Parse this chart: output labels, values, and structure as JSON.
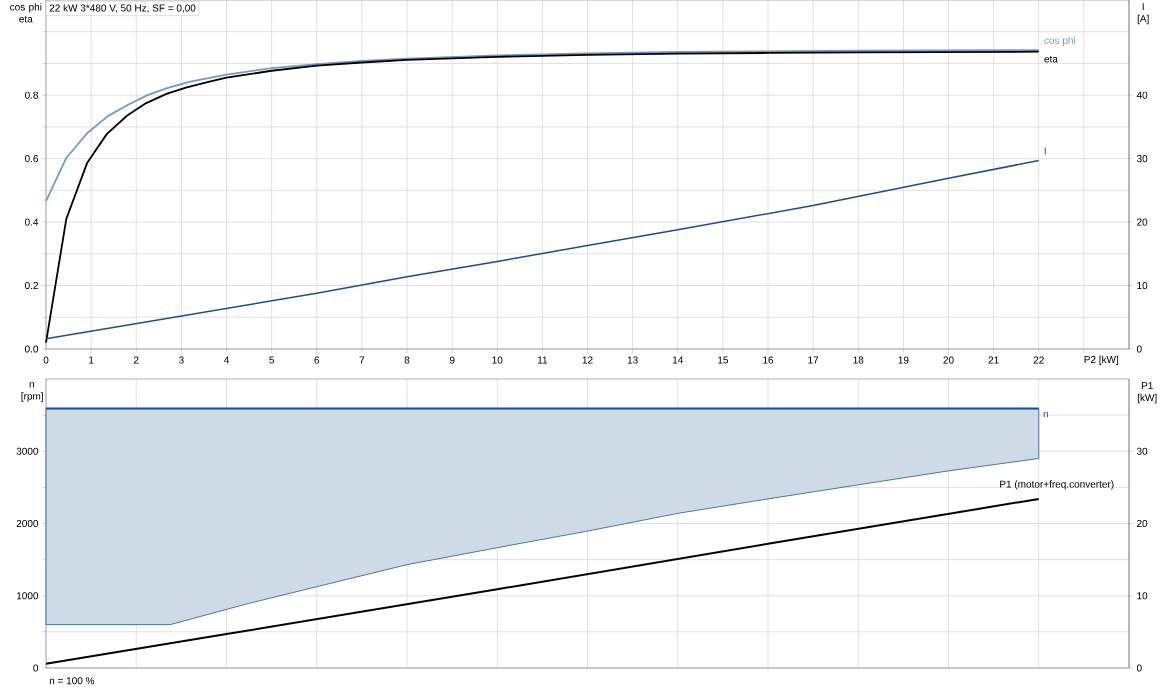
{
  "chart_data": [
    {
      "type": "line",
      "title": "22 kW   3*480 V, 50 Hz, SF = 0,00",
      "xlabel": "P2 [kW]",
      "ylabel": "cos phi eta",
      "y2label": "I [A]",
      "xlim": [
        0,
        24
      ],
      "xticks": [
        0,
        1,
        2,
        3,
        4,
        5,
        6,
        7,
        8,
        9,
        10,
        11,
        12,
        13,
        14,
        15,
        16,
        17,
        18,
        19,
        20,
        21,
        22,
        {
          "value": 23,
          "label": null
        }
      ],
      "ylim": [
        0,
        1.1
      ],
      "yticks": [
        {
          "value": 0,
          "label": "0.0"
        },
        {
          "value": 0.1,
          "label": null
        },
        0.2,
        {
          "value": 0.3,
          "label": null
        },
        0.4,
        {
          "value": 0.5,
          "label": null
        },
        0.6,
        {
          "value": 0.7,
          "label": null
        },
        0.8,
        {
          "value": 0.9,
          "label": null
        },
        {
          "value": 1.0,
          "label": null
        }
      ],
      "y2lim": [
        0,
        55
      ],
      "y2ticks": [
        0,
        10,
        20,
        30,
        40
      ],
      "grid": true,
      "series": [
        {
          "name": "cos phi",
          "color": "#7399c6",
          "x": [
            0,
            0.45,
            0.91,
            1.37,
            1.82,
            2.25,
            2.7,
            3.2,
            4,
            5,
            6,
            7,
            8,
            10,
            12,
            14,
            16,
            18,
            20,
            22
          ],
          "values": [
            0.466,
            0.602,
            0.68,
            0.734,
            0.77,
            0.8,
            0.823,
            0.843,
            0.865,
            0.885,
            0.898,
            0.908,
            0.915,
            0.925,
            0.932,
            0.936,
            0.938,
            0.94,
            0.941,
            0.942
          ]
        },
        {
          "name": "eta",
          "color": "#000000",
          "x": [
            0,
            0.45,
            0.91,
            1.35,
            1.8,
            2.22,
            2.67,
            3.1,
            3.6,
            4,
            5,
            6,
            7,
            8,
            10,
            12,
            14,
            16,
            18,
            20,
            22
          ],
          "values": [
            0.02,
            0.41,
            0.586,
            0.678,
            0.736,
            0.775,
            0.804,
            0.824,
            0.842,
            0.855,
            0.877,
            0.893,
            0.903,
            0.911,
            0.921,
            0.927,
            0.931,
            0.933,
            0.935,
            0.936,
            0.937
          ]
        },
        {
          "name": "I",
          "color": "#1a4f8f",
          "axis": "y2",
          "x": [
            0,
            2,
            4,
            6,
            8,
            10,
            12,
            14,
            17,
            20,
            22
          ],
          "values": [
            1.6,
            4.0,
            6.4,
            8.8,
            11.4,
            13.8,
            16.3,
            18.8,
            22.6,
            26.9,
            29.7
          ]
        }
      ]
    },
    {
      "type": "line",
      "ylabel": "n [rpm]",
      "y2label": "P1 [kW]",
      "xlim": [
        0,
        24
      ],
      "xticks": [
        0,
        2,
        4,
        6,
        8,
        10,
        12,
        14,
        16,
        18,
        20,
        22
      ],
      "tick_labels": "y",
      "ylim": [
        0,
        4000
      ],
      "yticks": [
        0,
        {
          "value": 500,
          "label": null
        },
        1000,
        {
          "value": 1500,
          "label": null
        },
        2000,
        {
          "value": 2500,
          "label": null
        },
        3000,
        {
          "value": 3500,
          "label": null
        }
      ],
      "y2lim": [
        0,
        40
      ],
      "y2ticks": [
        0,
        10,
        20,
        30
      ],
      "grid": true,
      "annotations": [
        "n = 100 %"
      ],
      "series": [
        {
          "name": "n",
          "color": "#1a4f8f",
          "x": [
            0,
            2.75,
            4.5,
            6,
            8,
            10,
            12,
            14,
            16,
            18,
            20,
            22
          ],
          "values": [
            3590,
            3590,
            3590,
            3590,
            3590,
            3590,
            3590,
            3590,
            3590,
            3590,
            3590,
            3590
          ],
          "lower": [
            600,
            600,
            895,
            1125,
            1430,
            1665,
            1895,
            2140,
            2340,
            2535,
            2728,
            2900
          ],
          "upper": [
            3590,
            3590,
            3590,
            3590,
            3590,
            3590,
            3590,
            3590,
            3590,
            3590,
            3590,
            3590
          ]
        },
        {
          "name": "P1 (motor+freq.converter)",
          "color": "#000000",
          "axis": "y2",
          "x": [
            0,
            4,
            10,
            16,
            22
          ],
          "values": [
            0.6,
            4.7,
            10.9,
            17.2,
            23.4
          ]
        }
      ]
    }
  ]
}
